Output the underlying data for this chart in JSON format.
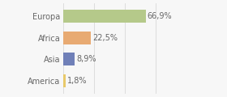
{
  "categories": [
    "Europa",
    "Africa",
    "Asia",
    "America"
  ],
  "values": [
    66.9,
    22.5,
    8.9,
    1.8
  ],
  "labels": [
    "66,9%",
    "22,5%",
    "8,9%",
    "1,8%"
  ],
  "bar_colors": [
    "#b5c98a",
    "#e8aa72",
    "#7080b8",
    "#e8c96a"
  ],
  "background_color": "#f7f7f7",
  "xlim": [
    0,
    100
  ],
  "bar_height": 0.6,
  "label_fontsize": 7,
  "tick_fontsize": 7,
  "grid_color": "#d8d8d8",
  "text_color": "#666666"
}
